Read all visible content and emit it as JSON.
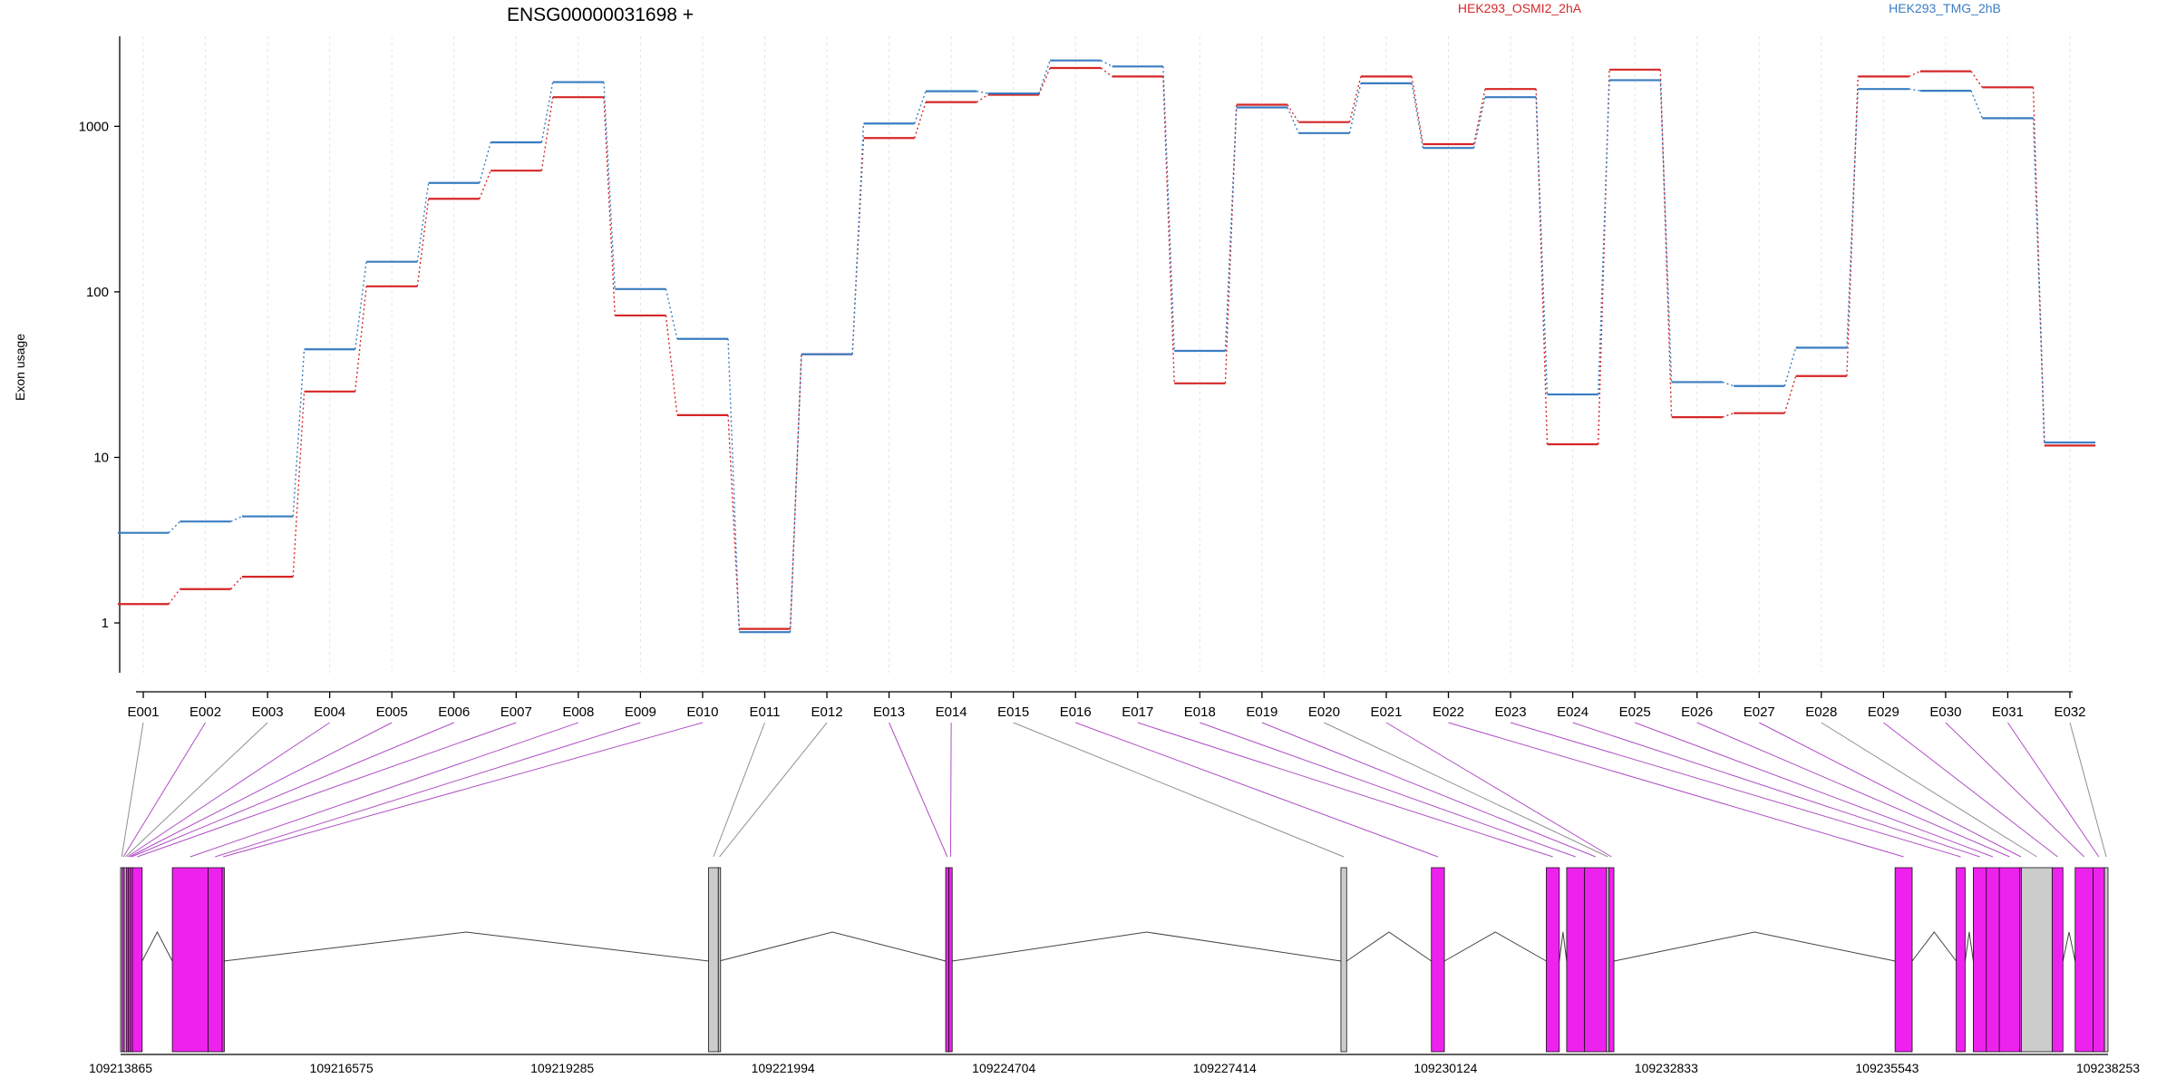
{
  "chart_data": {
    "type": "line",
    "title": "ENSG00000031698 +",
    "ylabel": "Exon usage",
    "y_scale": "log",
    "ylim": [
      0.5,
      3500
    ],
    "y_ticks": [
      {
        "value": 1,
        "label": "1"
      },
      {
        "value": 10,
        "label": "10"
      },
      {
        "value": 100,
        "label": "100"
      },
      {
        "value": 1000,
        "label": "1000"
      }
    ],
    "vertical_gridlines": true,
    "legend_placement": "top",
    "categories": [
      "E001",
      "E002",
      "E003",
      "E004",
      "E005",
      "E006",
      "E007",
      "E008",
      "E009",
      "E010",
      "E011",
      "E012",
      "E013",
      "E014",
      "E015",
      "E016",
      "E017",
      "E018",
      "E019",
      "E020",
      "E021",
      "E022",
      "E023",
      "E024",
      "E025",
      "E026",
      "E027",
      "E028",
      "E029",
      "E030",
      "E031",
      "E032"
    ],
    "series": [
      {
        "name": "HEK293_OSMI2_2hA",
        "color": "#d62728",
        "values": [
          1.3,
          1.6,
          1.9,
          25,
          108,
          365,
          540,
          1500,
          72,
          18,
          0.92,
          42,
          850,
          1400,
          1550,
          2250,
          2000,
          28,
          1350,
          1060,
          2000,
          780,
          1680,
          12,
          2200,
          17.5,
          18.5,
          31,
          2000,
          2150,
          1720,
          11.8
        ]
      },
      {
        "name": "HEK293_TMG_2hB",
        "color": "#3a7dc1",
        "values": [
          3.5,
          4.1,
          4.4,
          45,
          152,
          455,
          800,
          1850,
          104,
          52,
          0.88,
          42,
          1040,
          1630,
          1580,
          2500,
          2300,
          44,
          1300,
          910,
          1820,
          740,
          1500,
          24,
          1900,
          28.5,
          27,
          46,
          1680,
          1640,
          1120,
          12.3
        ]
      }
    ],
    "gene_model": {
      "color_significant": "#ee22ee",
      "color_not_significant": "#cccccc",
      "genomic_start": 109213865,
      "genomic_end": 109238253,
      "x_ticks": [
        {
          "value": 109213865,
          "label": "109213865"
        },
        {
          "value": 109216575,
          "label": "109216575"
        },
        {
          "value": 109219285,
          "label": "109219285"
        },
        {
          "value": 109221994,
          "label": "109221994"
        },
        {
          "value": 109224704,
          "label": "109224704"
        },
        {
          "value": 109227414,
          "label": "109227414"
        },
        {
          "value": 109230124,
          "label": "109230124"
        },
        {
          "value": 109232833,
          "label": "109232833"
        },
        {
          "value": 109235543,
          "label": "109235543"
        },
        {
          "value": 109238253,
          "label": "109238253"
        }
      ],
      "exons": [
        {
          "id": "E001",
          "start": 109213865,
          "end": 109213885,
          "significant": false
        },
        {
          "id": "E002",
          "start": 109213885,
          "end": 109213910,
          "significant": true
        },
        {
          "id": "E003",
          "start": 109213910,
          "end": 109213935,
          "significant": false
        },
        {
          "id": "E004",
          "start": 109213935,
          "end": 109213960,
          "significant": true
        },
        {
          "id": "E005",
          "start": 109213960,
          "end": 109213985,
          "significant": true
        },
        {
          "id": "E006",
          "start": 109213985,
          "end": 109214010,
          "significant": true
        },
        {
          "id": "E007",
          "start": 109214010,
          "end": 109214130,
          "significant": true
        },
        {
          "id": "E008",
          "start": 109214500,
          "end": 109214940,
          "significant": true
        },
        {
          "id": "E009",
          "start": 109214940,
          "end": 109215110,
          "significant": true
        },
        {
          "id": "E010",
          "start": 109215110,
          "end": 109215130,
          "significant": true
        },
        {
          "id": "E011",
          "start": 109221080,
          "end": 109221200,
          "significant": false
        },
        {
          "id": "E012",
          "start": 109221200,
          "end": 109221210,
          "significant": false
        },
        {
          "id": "E013",
          "start": 109223990,
          "end": 109224030,
          "significant": true
        },
        {
          "id": "E014",
          "start": 109224030,
          "end": 109224070,
          "significant": true
        },
        {
          "id": "E015",
          "start": 109228840,
          "end": 109228910,
          "significant": false
        },
        {
          "id": "E016",
          "start": 109229950,
          "end": 109230110,
          "significant": true
        },
        {
          "id": "E017",
          "start": 109231360,
          "end": 109231520,
          "significant": true
        },
        {
          "id": "E018",
          "start": 109231610,
          "end": 109231830,
          "significant": true
        },
        {
          "id": "E019",
          "start": 109231830,
          "end": 109232100,
          "significant": true
        },
        {
          "id": "E020",
          "start": 109232100,
          "end": 109232130,
          "significant": false
        },
        {
          "id": "E021",
          "start": 109232130,
          "end": 109232190,
          "significant": true
        },
        {
          "id": "E022",
          "start": 109235640,
          "end": 109235850,
          "significant": true
        },
        {
          "id": "E023",
          "start": 109236390,
          "end": 109236500,
          "significant": true
        },
        {
          "id": "E024",
          "start": 109236600,
          "end": 109236760,
          "significant": true
        },
        {
          "id": "E025",
          "start": 109236760,
          "end": 109236920,
          "significant": true
        },
        {
          "id": "E026",
          "start": 109236920,
          "end": 109237170,
          "significant": true
        },
        {
          "id": "E027",
          "start": 109237170,
          "end": 109237190,
          "significant": true
        },
        {
          "id": "E028",
          "start": 109237190,
          "end": 109237570,
          "significant": false
        },
        {
          "id": "E029",
          "start": 109237570,
          "end": 109237700,
          "significant": true
        },
        {
          "id": "E030",
          "start": 109237850,
          "end": 109238070,
          "significant": true
        },
        {
          "id": "E031",
          "start": 109238070,
          "end": 109238210,
          "significant": true
        },
        {
          "id": "E032",
          "start": 109238210,
          "end": 109238253,
          "significant": false
        }
      ]
    }
  }
}
